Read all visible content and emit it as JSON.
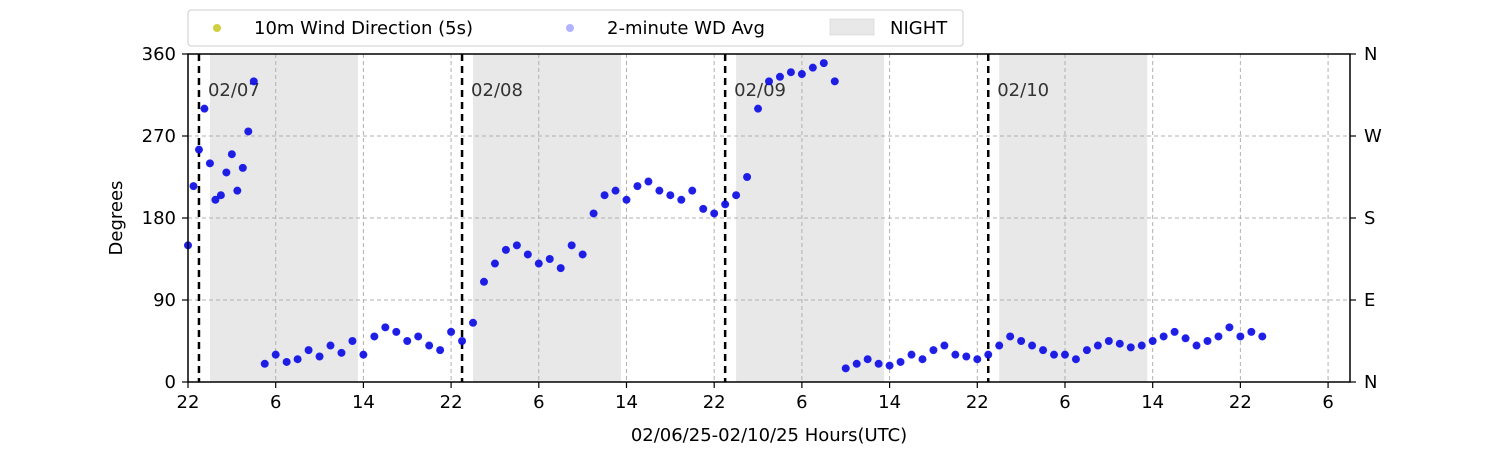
{
  "chart_data": {
    "type": "scatter",
    "xlabel": "02/06/25-02/10/25  Hours(UTC)",
    "ylabel": "Degrees",
    "ylim": [
      0,
      360
    ],
    "xlim_hours": [
      -2,
      104
    ],
    "y_ticks": [
      0,
      90,
      180,
      270,
      360
    ],
    "right_ticks": [
      {
        "value": 0,
        "label": "N"
      },
      {
        "value": 90,
        "label": "E"
      },
      {
        "value": 180,
        "label": "S"
      },
      {
        "value": 270,
        "label": "W"
      },
      {
        "value": 360,
        "label": "N"
      }
    ],
    "x_ticks": [
      {
        "value": -2,
        "label": "22"
      },
      {
        "value": 6,
        "label": "6"
      },
      {
        "value": 14,
        "label": "14"
      },
      {
        "value": 22,
        "label": "22"
      },
      {
        "value": 30,
        "label": "6"
      },
      {
        "value": 38,
        "label": "14"
      },
      {
        "value": 46,
        "label": "22"
      },
      {
        "value": 54,
        "label": "6"
      },
      {
        "value": 62,
        "label": "14"
      },
      {
        "value": 70,
        "label": "22"
      },
      {
        "value": 78,
        "label": "6"
      },
      {
        "value": 86,
        "label": "14"
      },
      {
        "value": 94,
        "label": "22"
      },
      {
        "value": 102,
        "label": "6"
      }
    ],
    "day_markers": [
      {
        "hour": -1,
        "label": "02/07"
      },
      {
        "hour": 23,
        "label": "02/08"
      },
      {
        "hour": 47,
        "label": "02/09"
      },
      {
        "hour": 71,
        "label": "02/10"
      }
    ],
    "night_periods": [
      [
        0,
        13.5
      ],
      [
        24,
        37.5
      ],
      [
        48,
        61.5
      ],
      [
        72,
        85.5
      ]
    ],
    "grid": true,
    "legend_position": "top",
    "series": [
      {
        "name": "10m Wind Direction (5s)",
        "color": "#bfbf00",
        "x": [
          -2,
          -1.5,
          -1,
          -0.5,
          0,
          0.5,
          1,
          1.5,
          2,
          2.5,
          3,
          3.5,
          4,
          5,
          6,
          7,
          8,
          9,
          10,
          11,
          12,
          13,
          14,
          15,
          16,
          17,
          18,
          19,
          20,
          21,
          22,
          23,
          24,
          25,
          26,
          27,
          28,
          29,
          30,
          31,
          32,
          33,
          34,
          35,
          36,
          37,
          38,
          39,
          40,
          41,
          42,
          43,
          44,
          45,
          46,
          47,
          48,
          49,
          50,
          51,
          52,
          53,
          54,
          55,
          56,
          57,
          58,
          59,
          60,
          61,
          62,
          63,
          64,
          65,
          66,
          67,
          68,
          69,
          70,
          71,
          72,
          73,
          74,
          75,
          76,
          77,
          78,
          79,
          80,
          81,
          82,
          83,
          84,
          85,
          86,
          87,
          88,
          89,
          90,
          91,
          92,
          93,
          94,
          95,
          96
        ],
        "y": [
          150,
          215,
          255,
          300,
          240,
          200,
          205,
          230,
          250,
          210,
          235,
          275,
          330,
          20,
          30,
          22,
          25,
          35,
          28,
          40,
          32,
          45,
          30,
          50,
          60,
          55,
          45,
          50,
          40,
          35,
          55,
          45,
          65,
          110,
          130,
          145,
          150,
          140,
          130,
          135,
          125,
          150,
          140,
          185,
          205,
          210,
          200,
          215,
          220,
          210,
          205,
          200,
          210,
          190,
          185,
          195,
          205,
          225,
          300,
          330,
          335,
          340,
          338,
          345,
          350,
          330,
          15,
          20,
          25,
          20,
          18,
          22,
          30,
          25,
          35,
          40,
          30,
          28,
          25,
          30,
          40,
          50,
          45,
          40,
          35,
          30,
          30,
          25,
          35,
          40,
          45,
          42,
          38,
          40,
          45,
          50,
          55,
          48,
          40,
          45,
          50,
          60,
          50,
          55,
          50
        ],
        "sample_values": true
      },
      {
        "name": "2-minute WD Avg",
        "color": "#0000ff",
        "x": [
          -2,
          -1.5,
          -1,
          -0.5,
          0,
          0.5,
          1,
          1.5,
          2,
          2.5,
          3,
          3.5,
          4,
          5,
          6,
          7,
          8,
          9,
          10,
          11,
          12,
          13,
          14,
          15,
          16,
          17,
          18,
          19,
          20,
          21,
          22,
          23,
          24,
          25,
          26,
          27,
          28,
          29,
          30,
          31,
          32,
          33,
          34,
          35,
          36,
          37,
          38,
          39,
          40,
          41,
          42,
          43,
          44,
          45,
          46,
          47,
          48,
          49,
          50,
          51,
          52,
          53,
          54,
          55,
          56,
          57,
          58,
          59,
          60,
          61,
          62,
          63,
          64,
          65,
          66,
          67,
          68,
          69,
          70,
          71,
          72,
          73,
          74,
          75,
          76,
          77,
          78,
          79,
          80,
          81,
          82,
          83,
          84,
          85,
          86,
          87,
          88,
          89,
          90,
          91,
          92,
          93,
          94,
          95,
          96
        ],
        "y": [
          150,
          215,
          255,
          300,
          240,
          200,
          205,
          230,
          250,
          210,
          235,
          275,
          330,
          20,
          30,
          22,
          25,
          35,
          28,
          40,
          32,
          45,
          30,
          50,
          60,
          55,
          45,
          50,
          40,
          35,
          55,
          45,
          65,
          110,
          130,
          145,
          150,
          140,
          130,
          135,
          125,
          150,
          140,
          185,
          205,
          210,
          200,
          215,
          220,
          210,
          205,
          200,
          210,
          190,
          185,
          195,
          205,
          225,
          300,
          330,
          335,
          340,
          338,
          345,
          350,
          330,
          15,
          20,
          25,
          20,
          18,
          22,
          30,
          25,
          35,
          40,
          30,
          28,
          25,
          30,
          40,
          50,
          45,
          40,
          35,
          30,
          30,
          25,
          35,
          40,
          45,
          42,
          38,
          40,
          45,
          50,
          55,
          48,
          40,
          45,
          50,
          60,
          50,
          55,
          50
        ],
        "sample_values": true
      }
    ],
    "night_legend_label": "NIGHT",
    "night_color": "#e8e8e8"
  }
}
